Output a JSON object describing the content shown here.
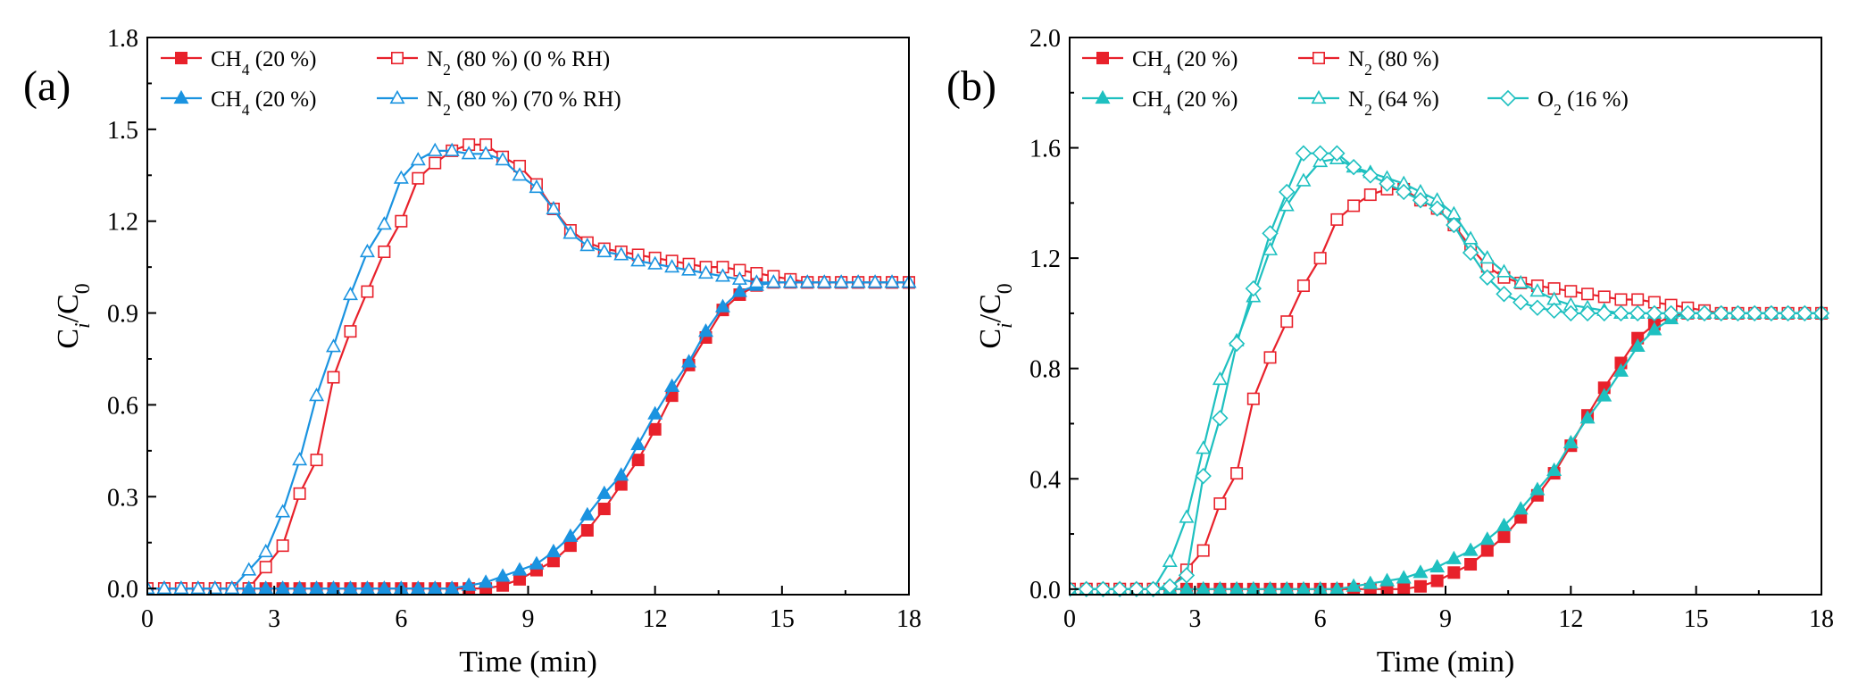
{
  "chart_data": [
    {
      "type": "line",
      "panel_label": "(a)",
      "xlabel": "Time (min)",
      "ylabel": {
        "main": "C",
        "sub": "i",
        "rest": "/C",
        "sub2": "0"
      },
      "xlim": [
        0,
        18
      ],
      "ylim": [
        -0.02,
        1.8
      ],
      "xticks": [
        0,
        3,
        6,
        9,
        12,
        15,
        18
      ],
      "xtick_labels": [
        "0",
        "3",
        "6",
        "9",
        "12",
        "15",
        "18"
      ],
      "yticks": [
        0.0,
        0.3,
        0.6,
        0.9,
        1.2,
        1.5,
        1.8
      ],
      "ytick_labels": [
        "0.0",
        "0.3",
        "0.6",
        "0.9",
        "1.2",
        "1.5",
        "1.8"
      ],
      "legend": {
        "placement": "top-left",
        "rows": [
          {
            "items": [
              {
                "series": 0,
                "main": "CH",
                "sub": "4",
                "rest": " (20 %)"
              },
              {
                "series": 1,
                "main": "N",
                "sub": "2",
                "rest": " (80 %) (0 % RH)"
              }
            ]
          },
          {
            "items": [
              {
                "series": 2,
                "main": "CH",
                "sub": "4",
                "rest": " (20 %)"
              },
              {
                "series": 3,
                "main": "N",
                "sub": "2",
                "rest": " (80 %) (70 % RH)"
              }
            ]
          }
        ]
      },
      "series": [
        {
          "name": "CH4 (20 %) 0 % RH",
          "color": "#e8212b",
          "marker": "square",
          "filled": true,
          "x": [
            0,
            0.4,
            0.8,
            1.2,
            1.6,
            2.0,
            2.4,
            2.8,
            3.2,
            3.6,
            4.0,
            4.4,
            4.8,
            5.2,
            5.6,
            6.0,
            6.4,
            6.8,
            7.2,
            7.6,
            8.0,
            8.4,
            8.8,
            9.2,
            9.6,
            10.0,
            10.4,
            10.8,
            11.2,
            11.6,
            12.0,
            12.4,
            12.8,
            13.2,
            13.6,
            14.0,
            14.4,
            14.8,
            15.2,
            15.6,
            16.0,
            16.4,
            16.8,
            17.2,
            17.6,
            18.0
          ],
          "y": [
            0,
            0,
            0,
            0,
            0,
            0,
            0,
            0,
            0,
            0,
            0,
            0,
            0,
            0,
            0,
            0,
            0,
            0,
            0,
            0,
            0,
            0.01,
            0.03,
            0.06,
            0.09,
            0.14,
            0.19,
            0.26,
            0.34,
            0.42,
            0.52,
            0.63,
            0.73,
            0.82,
            0.91,
            0.96,
            0.99,
            1.0,
            1.0,
            1.0,
            1.0,
            1.0,
            1.0,
            1.0,
            1.0,
            1.0
          ]
        },
        {
          "name": "N2 (80 %) (0 % RH)",
          "color": "#e8212b",
          "marker": "square",
          "filled": false,
          "x": [
            0,
            0.4,
            0.8,
            1.2,
            1.6,
            2.0,
            2.4,
            2.8,
            3.2,
            3.6,
            4.0,
            4.4,
            4.8,
            5.2,
            5.6,
            6.0,
            6.4,
            6.8,
            7.2,
            7.6,
            8.0,
            8.4,
            8.8,
            9.2,
            9.6,
            10.0,
            10.4,
            10.8,
            11.2,
            11.6,
            12.0,
            12.4,
            12.8,
            13.2,
            13.6,
            14.0,
            14.4,
            14.8,
            15.2,
            15.6,
            16.0,
            16.4,
            16.8,
            17.2,
            17.6,
            18.0
          ],
          "y": [
            0,
            0,
            0,
            0,
            0,
            0,
            0,
            0.07,
            0.14,
            0.31,
            0.42,
            0.69,
            0.84,
            0.97,
            1.1,
            1.2,
            1.34,
            1.39,
            1.43,
            1.45,
            1.45,
            1.41,
            1.38,
            1.32,
            1.24,
            1.17,
            1.13,
            1.11,
            1.1,
            1.09,
            1.08,
            1.07,
            1.06,
            1.05,
            1.05,
            1.04,
            1.03,
            1.02,
            1.01,
            1.0,
            1.0,
            1.0,
            1.0,
            1.0,
            1.0,
            1.0
          ]
        },
        {
          "name": "CH4 (20 %) 70 % RH",
          "color": "#1a93e0",
          "marker": "triangle",
          "filled": true,
          "x": [
            0,
            0.4,
            0.8,
            1.2,
            1.6,
            2.0,
            2.4,
            2.8,
            3.2,
            3.6,
            4.0,
            4.4,
            4.8,
            5.2,
            5.6,
            6.0,
            6.4,
            6.8,
            7.2,
            7.6,
            8.0,
            8.4,
            8.8,
            9.2,
            9.6,
            10.0,
            10.4,
            10.8,
            11.2,
            11.6,
            12.0,
            12.4,
            12.8,
            13.2,
            13.6,
            14.0,
            14.4,
            14.8,
            15.2,
            15.6,
            16.0,
            16.4,
            16.8,
            17.2,
            17.6,
            18.0
          ],
          "y": [
            0,
            0,
            0,
            0,
            0,
            0,
            0,
            0,
            0,
            0,
            0,
            0,
            0,
            0,
            0,
            0,
            0,
            0,
            0,
            0.01,
            0.02,
            0.04,
            0.06,
            0.08,
            0.12,
            0.17,
            0.24,
            0.31,
            0.37,
            0.47,
            0.57,
            0.66,
            0.74,
            0.84,
            0.92,
            0.97,
            0.99,
            1.0,
            1.0,
            1.0,
            1.0,
            1.0,
            1.0,
            1.0,
            1.0,
            1.0
          ]
        },
        {
          "name": "N2 (80 %) (70 % RH)",
          "color": "#1a93e0",
          "marker": "triangle",
          "filled": false,
          "x": [
            0,
            0.4,
            0.8,
            1.2,
            1.6,
            2.0,
            2.4,
            2.8,
            3.2,
            3.6,
            4.0,
            4.4,
            4.8,
            5.2,
            5.6,
            6.0,
            6.4,
            6.8,
            7.2,
            7.6,
            8.0,
            8.4,
            8.8,
            9.2,
            9.6,
            10.0,
            10.4,
            10.8,
            11.2,
            11.6,
            12.0,
            12.4,
            12.8,
            13.2,
            13.6,
            14.0,
            14.4,
            14.8,
            15.2,
            15.6,
            16.0,
            16.4,
            16.8,
            17.2,
            17.6,
            18.0
          ],
          "y": [
            0,
            0,
            0,
            0,
            0,
            0,
            0.06,
            0.12,
            0.25,
            0.42,
            0.63,
            0.79,
            0.96,
            1.1,
            1.19,
            1.34,
            1.4,
            1.43,
            1.43,
            1.42,
            1.42,
            1.4,
            1.35,
            1.31,
            1.24,
            1.16,
            1.12,
            1.1,
            1.09,
            1.07,
            1.06,
            1.05,
            1.04,
            1.03,
            1.02,
            1.01,
            1.0,
            1.0,
            1.0,
            1.0,
            1.0,
            1.0,
            1.0,
            1.0,
            1.0,
            1.0
          ]
        }
      ]
    },
    {
      "type": "line",
      "panel_label": "(b)",
      "xlabel": "Time (min)",
      "ylabel": {
        "main": "C",
        "sub": "i",
        "rest": "/C",
        "sub2": "0"
      },
      "xlim": [
        0,
        18
      ],
      "ylim": [
        -0.02,
        2.0
      ],
      "xticks": [
        0,
        3,
        6,
        9,
        12,
        15,
        18
      ],
      "xtick_labels": [
        "0",
        "3",
        "6",
        "9",
        "12",
        "15",
        "18"
      ],
      "yticks": [
        0.0,
        0.4,
        0.8,
        1.2,
        1.6,
        2.0
      ],
      "ytick_labels": [
        "0.0",
        "0.4",
        "0.8",
        "1.2",
        "1.6",
        "2.0"
      ],
      "legend": {
        "placement": "top-left",
        "rows": [
          {
            "items": [
              {
                "series": 0,
                "main": "CH",
                "sub": "4",
                "rest": " (20 %)"
              },
              {
                "series": 1,
                "main": "N",
                "sub": "2",
                "rest": " (80 %)"
              }
            ]
          },
          {
            "items": [
              {
                "series": 2,
                "main": "CH",
                "sub": "4",
                "rest": " (20 %)"
              },
              {
                "series": 3,
                "main": "N",
                "sub": "2",
                "rest": " (64 %)"
              },
              {
                "series": 4,
                "main": "O",
                "sub": "2",
                "rest": " (16 %)"
              }
            ]
          }
        ]
      },
      "series": [
        {
          "name": "CH4 (20 %) with N2",
          "color": "#e8212b",
          "marker": "square",
          "filled": true,
          "x": [
            0,
            0.4,
            0.8,
            1.2,
            1.6,
            2.0,
            2.4,
            2.8,
            3.2,
            3.6,
            4.0,
            4.4,
            4.8,
            5.2,
            5.6,
            6.0,
            6.4,
            6.8,
            7.2,
            7.6,
            8.0,
            8.4,
            8.8,
            9.2,
            9.6,
            10.0,
            10.4,
            10.8,
            11.2,
            11.6,
            12.0,
            12.4,
            12.8,
            13.2,
            13.6,
            14.0,
            14.4,
            14.8,
            15.2,
            15.6,
            16.0,
            16.4,
            16.8,
            17.2,
            17.6,
            18.0
          ],
          "y": [
            0,
            0,
            0,
            0,
            0,
            0,
            0,
            0,
            0,
            0,
            0,
            0,
            0,
            0,
            0,
            0,
            0,
            0,
            0,
            0,
            0,
            0.01,
            0.03,
            0.06,
            0.09,
            0.14,
            0.19,
            0.26,
            0.34,
            0.42,
            0.52,
            0.63,
            0.73,
            0.82,
            0.91,
            0.96,
            0.99,
            1.0,
            1.0,
            1.0,
            1.0,
            1.0,
            1.0,
            1.0,
            1.0,
            1.0
          ]
        },
        {
          "name": "N2 (80 %)",
          "color": "#e8212b",
          "marker": "square",
          "filled": false,
          "x": [
            0,
            0.4,
            0.8,
            1.2,
            1.6,
            2.0,
            2.4,
            2.8,
            3.2,
            3.6,
            4.0,
            4.4,
            4.8,
            5.2,
            5.6,
            6.0,
            6.4,
            6.8,
            7.2,
            7.6,
            8.0,
            8.4,
            8.8,
            9.2,
            9.6,
            10.0,
            10.4,
            10.8,
            11.2,
            11.6,
            12.0,
            12.4,
            12.8,
            13.2,
            13.6,
            14.0,
            14.4,
            14.8,
            15.2,
            15.6,
            16.0,
            16.4,
            16.8,
            17.2,
            17.6,
            18.0
          ],
          "y": [
            0,
            0,
            0,
            0,
            0,
            0,
            0,
            0.07,
            0.14,
            0.31,
            0.42,
            0.69,
            0.84,
            0.97,
            1.1,
            1.2,
            1.34,
            1.39,
            1.43,
            1.45,
            1.45,
            1.41,
            1.38,
            1.32,
            1.24,
            1.17,
            1.13,
            1.11,
            1.1,
            1.09,
            1.08,
            1.07,
            1.06,
            1.05,
            1.05,
            1.04,
            1.03,
            1.02,
            1.01,
            1.0,
            1.0,
            1.0,
            1.0,
            1.0,
            1.0,
            1.0
          ]
        },
        {
          "name": "CH4 (20 %) with N2 and O2",
          "color": "#1ec0c0",
          "marker": "triangle",
          "filled": true,
          "x": [
            0,
            0.4,
            0.8,
            1.2,
            1.6,
            2.0,
            2.4,
            2.8,
            3.2,
            3.6,
            4.0,
            4.4,
            4.8,
            5.2,
            5.6,
            6.0,
            6.4,
            6.8,
            7.2,
            7.6,
            8.0,
            8.4,
            8.8,
            9.2,
            9.6,
            10.0,
            10.4,
            10.8,
            11.2,
            11.6,
            12.0,
            12.4,
            12.8,
            13.2,
            13.6,
            14.0,
            14.4,
            14.8,
            15.2,
            15.6,
            16.0,
            16.4,
            16.8,
            17.2,
            17.6,
            18.0
          ],
          "y": [
            0,
            0,
            0,
            0,
            0,
            0,
            0,
            0,
            0,
            0,
            0,
            0,
            0,
            0,
            0,
            0,
            0,
            0.01,
            0.02,
            0.03,
            0.04,
            0.06,
            0.08,
            0.11,
            0.14,
            0.18,
            0.23,
            0.29,
            0.36,
            0.43,
            0.53,
            0.62,
            0.7,
            0.79,
            0.88,
            0.94,
            0.98,
            1.0,
            1.0,
            1.0,
            1.0,
            1.0,
            1.0,
            1.0,
            1.0,
            1.0
          ]
        },
        {
          "name": "N2 (64 %)",
          "color": "#1ec0c0",
          "marker": "triangle",
          "filled": false,
          "x": [
            0,
            0.4,
            0.8,
            1.2,
            1.6,
            2.0,
            2.4,
            2.8,
            3.2,
            3.6,
            4.0,
            4.4,
            4.8,
            5.2,
            5.6,
            6.0,
            6.4,
            6.8,
            7.2,
            7.6,
            8.0,
            8.4,
            8.8,
            9.2,
            9.6,
            10.0,
            10.4,
            10.8,
            11.2,
            11.6,
            12.0,
            12.4,
            12.8,
            13.2,
            13.6,
            14.0,
            14.4,
            14.8,
            15.2,
            15.6,
            16.0,
            16.4,
            16.8,
            17.2,
            17.6,
            18.0
          ],
          "y": [
            0,
            0,
            0,
            0,
            0,
            0,
            0.1,
            0.26,
            0.51,
            0.76,
            0.9,
            1.06,
            1.23,
            1.39,
            1.48,
            1.55,
            1.56,
            1.53,
            1.51,
            1.49,
            1.47,
            1.44,
            1.41,
            1.36,
            1.27,
            1.2,
            1.15,
            1.11,
            1.08,
            1.05,
            1.03,
            1.02,
            1.01,
            1.0,
            1.0,
            1.0,
            1.0,
            1.0,
            1.0,
            1.0,
            1.0,
            1.0,
            1.0,
            1.0,
            1.0,
            1.0
          ]
        },
        {
          "name": "O2 (16 %)",
          "color": "#1ec0c0",
          "marker": "diamond",
          "filled": false,
          "x": [
            0,
            0.4,
            0.8,
            1.2,
            1.6,
            2.0,
            2.4,
            2.8,
            3.2,
            3.6,
            4.0,
            4.4,
            4.8,
            5.2,
            5.6,
            6.0,
            6.4,
            6.8,
            7.2,
            7.6,
            8.0,
            8.4,
            8.8,
            9.2,
            9.6,
            10.0,
            10.4,
            10.8,
            11.2,
            11.6,
            12.0,
            12.4,
            12.8,
            13.2,
            13.6,
            14.0,
            14.4,
            14.8,
            15.2,
            15.6,
            16.0,
            16.4,
            16.8,
            17.2,
            17.6,
            18.0
          ],
          "y": [
            0,
            0,
            0,
            0,
            0,
            0,
            0.01,
            0.05,
            0.41,
            0.62,
            0.89,
            1.09,
            1.29,
            1.44,
            1.58,
            1.58,
            1.58,
            1.53,
            1.5,
            1.47,
            1.44,
            1.41,
            1.38,
            1.32,
            1.22,
            1.13,
            1.07,
            1.04,
            1.02,
            1.01,
            1.0,
            1.0,
            1.0,
            1.0,
            1.0,
            1.0,
            1.0,
            1.0,
            1.0,
            1.0,
            1.0,
            1.0,
            1.0,
            1.0,
            1.0,
            1.0
          ]
        }
      ]
    }
  ]
}
